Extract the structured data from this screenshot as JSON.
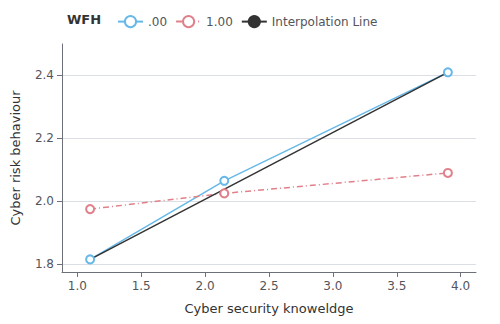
{
  "chart_data": {
    "type": "line",
    "xlabel": "Cyber security knoweldge",
    "ylabel": "Cyber risk behaviour",
    "legend_title": "WFH",
    "legend": "top",
    "grid": true,
    "xlim": [
      0.88,
      4.12
    ],
    "ylim": [
      1.775,
      2.5
    ],
    "xticks": [
      {
        "value": 1.0,
        "label": "1.0"
      },
      {
        "value": 1.5,
        "label": "1.5"
      },
      {
        "value": 2.0,
        "label": "2.0"
      },
      {
        "value": 2.5,
        "label": "2.5"
      },
      {
        "value": 3.0,
        "label": "3.0"
      },
      {
        "value": 3.5,
        "label": "3.5"
      },
      {
        "value": 4.0,
        "label": "4.0"
      }
    ],
    "yticks": [
      {
        "value": 1.8,
        "label": "1.8"
      },
      {
        "value": 2.0,
        "label": "2.0"
      },
      {
        "value": 2.2,
        "label": "2.2"
      },
      {
        "value": 2.4,
        "label": "2.4"
      }
    ],
    "series": [
      {
        "name": ".00",
        "color": "#66b8e8",
        "marker": "circle",
        "line_style": "solid",
        "x": [
          1.1,
          2.15,
          3.9
        ],
        "values": [
          1.815,
          2.065,
          2.41
        ]
      },
      {
        "name": "1.00",
        "color": "#e0808a",
        "marker": "circle",
        "line_style": "dashdot",
        "x": [
          1.1,
          2.15,
          3.9
        ],
        "values": [
          1.975,
          2.025,
          2.09
        ]
      },
      {
        "name": "Interpolation Line",
        "color": "#333333",
        "marker": "none",
        "line_style": "solid",
        "x": [
          1.1,
          3.9
        ],
        "values": [
          1.815,
          2.41
        ]
      }
    ]
  }
}
